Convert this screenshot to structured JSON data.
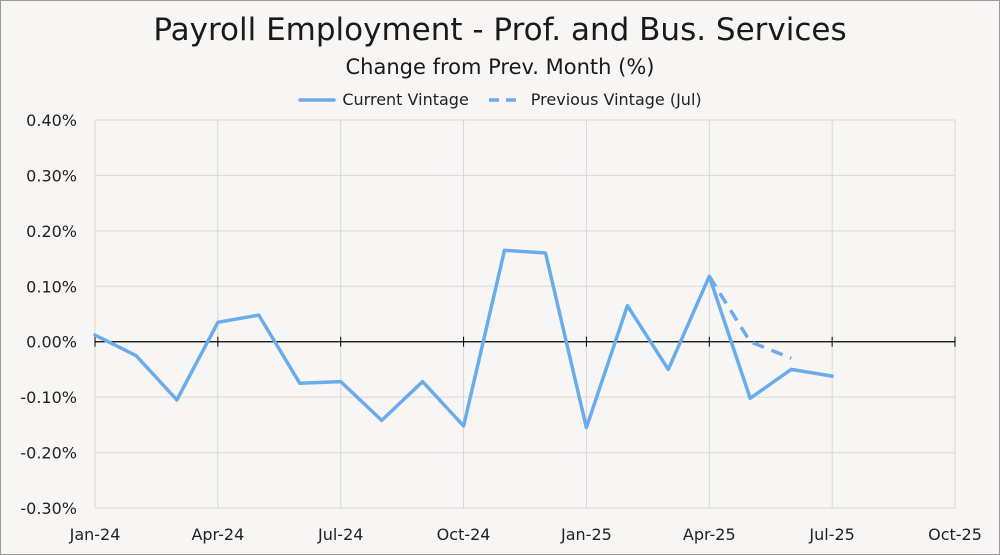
{
  "chart_data": {
    "type": "line",
    "title": "Payroll Employment - Prof. and Bus. Services",
    "subtitle": "Change from Prev. Month (%)",
    "legend_position": "top",
    "grid": true,
    "ylim": [
      -0.3,
      0.4
    ],
    "yticks": [
      -0.3,
      -0.2,
      -0.1,
      0.0,
      0.1,
      0.2,
      0.3,
      0.4
    ],
    "ytick_labels": [
      "-0.30%",
      "-0.20%",
      "-0.10%",
      "0.00%",
      "0.10%",
      "0.20%",
      "0.30%",
      "0.40%"
    ],
    "xlim": [
      "2024-01",
      "2025-10"
    ],
    "xticks": [
      "2024-01",
      "2024-04",
      "2024-07",
      "2024-10",
      "2025-01",
      "2025-04",
      "2025-07",
      "2025-10"
    ],
    "xtick_labels": [
      "Jan-24",
      "Apr-24",
      "Jul-24",
      "Oct-24",
      "Jan-25",
      "Apr-25",
      "Jul-25",
      "Oct-25"
    ],
    "series": [
      {
        "name": "Current Vintage",
        "style": "solid",
        "color": "#6aaceb",
        "x": [
          "2024-01",
          "2024-02",
          "2024-03",
          "2024-04",
          "2024-05",
          "2024-06",
          "2024-07",
          "2024-08",
          "2024-09",
          "2024-10",
          "2024-11",
          "2024-12",
          "2025-01",
          "2025-02",
          "2025-03",
          "2025-04",
          "2025-05",
          "2025-06",
          "2025-07"
        ],
        "values": [
          0.012,
          -0.025,
          -0.105,
          0.035,
          0.048,
          -0.075,
          -0.072,
          -0.142,
          -0.072,
          -0.152,
          0.165,
          0.16,
          -0.155,
          0.065,
          -0.05,
          0.118,
          -0.102,
          -0.05,
          -0.062
        ]
      },
      {
        "name": "Previous Vintage (Jul)",
        "style": "dashed",
        "color": "#6aaceb",
        "x": [
          "2025-04",
          "2025-05",
          "2025-06"
        ],
        "values": [
          0.118,
          0.0,
          -0.03
        ]
      }
    ]
  }
}
